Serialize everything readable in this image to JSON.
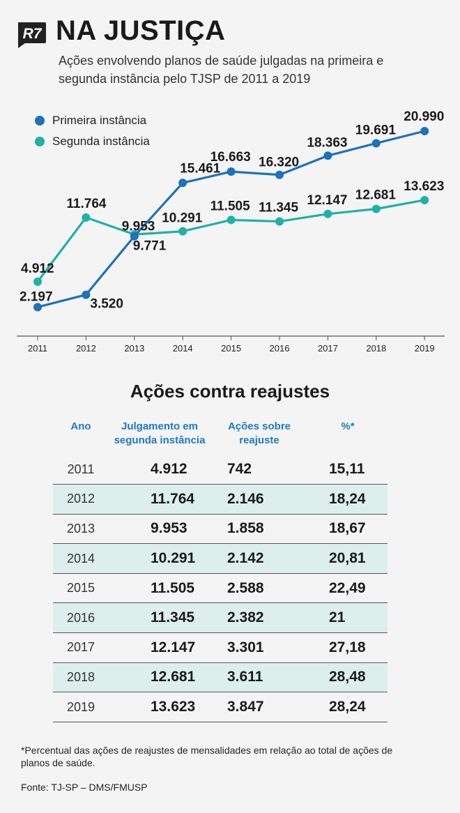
{
  "header": {
    "logo_text": "R7",
    "title": "NA JUSTIÇA",
    "subtitle": "Ações envolvendo planos de saúde julgadas na primeira e segunda instância pelo TJSP de 2011 a 2019"
  },
  "colors": {
    "primeira": "#1c72bb",
    "segunda": "#1fb1a8"
  },
  "chart_data": {
    "type": "line",
    "categories": [
      "2011",
      "2012",
      "2013",
      "2014",
      "2015",
      "2016",
      "2017",
      "2018",
      "2019"
    ],
    "series": [
      {
        "name": "Primeira instância",
        "values": [
          2197,
          3520,
          9771,
          15461,
          16663,
          16320,
          18363,
          19691,
          20990
        ],
        "labels": [
          "2.197",
          "3.520",
          "9.771",
          "15.461",
          "16.663",
          "16.320",
          "18.363",
          "19.691",
          "20.990"
        ]
      },
      {
        "name": "Segunda instância",
        "values": [
          4912,
          11764,
          9953,
          10291,
          11505,
          11345,
          12147,
          12681,
          13623
        ],
        "labels": [
          "4.912",
          "11.764",
          "9.953",
          "10.291",
          "11.505",
          "11.345",
          "12.147",
          "12.681",
          "13.623"
        ]
      }
    ],
    "ylim": [
      0,
      22000
    ],
    "grid": false,
    "legend": "top-left"
  },
  "table": {
    "title": "Ações contra reajustes",
    "headers": {
      "ano": "Ano",
      "julgamento_1": "Julgamento em",
      "julgamento_2": "segunda instância",
      "acoes_1": "Ações sobre",
      "acoes_2": "reajuste",
      "pct": "%*"
    },
    "rows": [
      {
        "ano": "2011",
        "julgamento": "4.912",
        "acoes": "742",
        "pct": "15,11"
      },
      {
        "ano": "2012",
        "julgamento": "11.764",
        "acoes": "2.146",
        "pct": "18,24"
      },
      {
        "ano": "2013",
        "julgamento": "9.953",
        "acoes": "1.858",
        "pct": "18,67"
      },
      {
        "ano": "2014",
        "julgamento": "10.291",
        "acoes": "2.142",
        "pct": "20,81"
      },
      {
        "ano": "2015",
        "julgamento": "11.505",
        "acoes": "2.588",
        "pct": "22,49"
      },
      {
        "ano": "2016",
        "julgamento": "11.345",
        "acoes": "2.382",
        "pct": "21"
      },
      {
        "ano": "2017",
        "julgamento": "12.147",
        "acoes": "3.301",
        "pct": "27,18"
      },
      {
        "ano": "2018",
        "julgamento": "12.681",
        "acoes": "3.611",
        "pct": "28,48"
      },
      {
        "ano": "2019",
        "julgamento": "13.623",
        "acoes": "3.847",
        "pct": "28,24"
      }
    ]
  },
  "footnote": "*Percentual das ações de reajustes de mensalidades em relação ao total de ações de planos de saúde.",
  "source": "Fonte: TJ-SP – DMS/FMUSP"
}
